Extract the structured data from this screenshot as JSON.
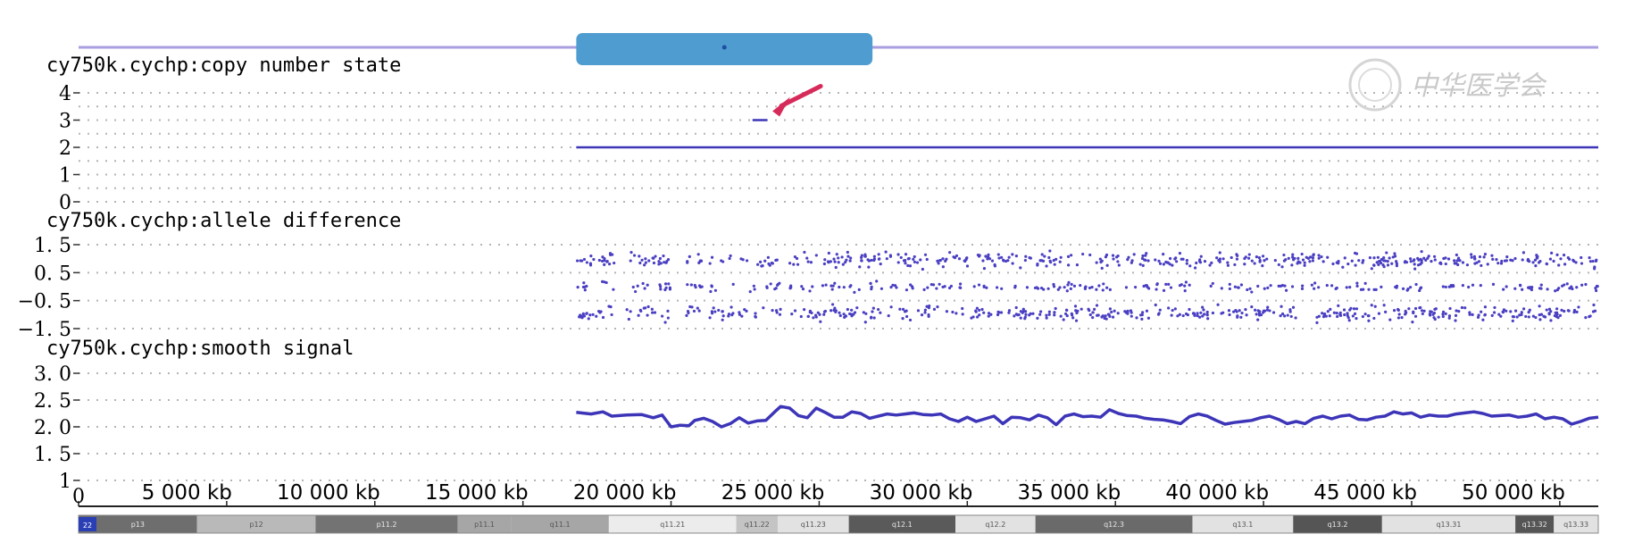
{
  "chart_data": {
    "type": "line",
    "genome_track": {
      "chromosome_label": "22",
      "x_unit": "kb",
      "x_ticks": [
        {
          "value": 0,
          "label": "0"
        },
        {
          "value": 5000,
          "label": "5 000 kb"
        },
        {
          "value": 10000,
          "label": "10 000 kb"
        },
        {
          "value": 15000,
          "label": "15 000 kb"
        },
        {
          "value": 20000,
          "label": "20 000 kb"
        },
        {
          "value": 25000,
          "label": "25 000 kb"
        },
        {
          "value": 30000,
          "label": "30 000 kb"
        },
        {
          "value": 35000,
          "label": "35 000 kb"
        },
        {
          "value": 40000,
          "label": "40 000 kb"
        },
        {
          "value": 45000,
          "label": "45 000 kb"
        },
        {
          "value": 50000,
          "label": "50 000 kb"
        }
      ],
      "xlim": [
        0,
        51300
      ],
      "data_start_kb": 16800,
      "highlight_region_kb": [
        16800,
        26800
      ],
      "highlight_color": "#4f9cd0",
      "ideogram": [
        {
          "name": "p13",
          "start": 0,
          "end": 4000,
          "color": "#6e6e6e"
        },
        {
          "name": "p12",
          "start": 4000,
          "end": 8000,
          "color": "#b9b9b9"
        },
        {
          "name": "p11.2",
          "start": 8000,
          "end": 12800,
          "color": "#737373"
        },
        {
          "name": "p11.1",
          "start": 12800,
          "end": 14600,
          "color": "#a6a6a6"
        },
        {
          "name": "q11.1",
          "start": 14600,
          "end": 17900,
          "color": "#a6a6a6"
        },
        {
          "name": "q11.21",
          "start": 17900,
          "end": 22200,
          "color": "#ececec"
        },
        {
          "name": "q11.22",
          "start": 22200,
          "end": 23600,
          "color": "#c4c4c4"
        },
        {
          "name": "q11.23",
          "start": 23600,
          "end": 26000,
          "color": "#e2e2e2"
        },
        {
          "name": "q12.1",
          "start": 26000,
          "end": 29600,
          "color": "#5a5a5a"
        },
        {
          "name": "q12.2",
          "start": 29600,
          "end": 32300,
          "color": "#e2e2e2"
        },
        {
          "name": "q12.3",
          "start": 32300,
          "end": 37600,
          "color": "#6a6a6a"
        },
        {
          "name": "q13.1",
          "start": 37600,
          "end": 41000,
          "color": "#e2e2e2"
        },
        {
          "name": "q13.2",
          "start": 41000,
          "end": 44000,
          "color": "#555555"
        },
        {
          "name": "q13.31",
          "start": 44000,
          "end": 48500,
          "color": "#e2e2e2"
        },
        {
          "name": "q13.32",
          "start": 48500,
          "end": 49800,
          "color": "#555555"
        },
        {
          "name": "q13.33",
          "start": 49800,
          "end": 51300,
          "color": "#e2e2e2"
        }
      ]
    },
    "panels": [
      {
        "title": "cy750k.cychp:copy number state",
        "ylim": [
          0,
          4
        ],
        "y_ticks": [
          {
            "value": 4,
            "label": "4"
          },
          {
            "value": 3,
            "label": "3"
          },
          {
            "value": 2,
            "label": "2"
          },
          {
            "value": 1,
            "label": "1"
          },
          {
            "value": 0,
            "label": "0"
          }
        ],
        "series": [
          {
            "x_range_kb": [
              16800,
              51300
            ],
            "value": 2
          },
          {
            "x_range_kb": [
              22750,
              23250
            ],
            "value": 3
          }
        ],
        "annotation": {
          "type": "arrow",
          "target_kb": 23000,
          "target_value": 3,
          "color": "#d62a5a"
        }
      },
      {
        "title": "cy750k.cychp:allele difference",
        "ylim": [
          -1.5,
          1.5
        ],
        "y_ticks": [
          {
            "value": 1.5,
            "label": "1. 5"
          },
          {
            "value": 0.5,
            "label": "0. 5"
          },
          {
            "value": -0.5,
            "label": "−0. 5"
          },
          {
            "value": -1.5,
            "label": "−1. 5"
          }
        ],
        "bands": [
          0.95,
          0,
          -0.95
        ],
        "point_color": "#4a3fc2"
      },
      {
        "title": "cy750k.cychp:smooth signal",
        "ylim": [
          1,
          3
        ],
        "y_ticks": [
          {
            "value": 3.0,
            "label": "3. 0"
          },
          {
            "value": 2.5,
            "label": "2. 5"
          },
          {
            "value": 2.0,
            "label": "2. 0"
          },
          {
            "value": 1.5,
            "label": "1. 5"
          },
          {
            "value": 1,
            "label": "1"
          }
        ],
        "series": [
          {
            "x": [
              16800,
              17300,
              17700,
              18000,
              18500,
              19000,
              19400,
              19700,
              20000,
              20300,
              20600,
              20800,
              21100,
              21400,
              21700,
              22000,
              22300,
              22600,
              22900,
              23200,
              23500,
              23700,
              24000,
              24300,
              24600,
              24900,
              25200,
              25500,
              25800,
              26100,
              26400,
              26700,
              27000,
              27300,
              27600,
              27900,
              28200,
              28500,
              28800,
              29100,
              29400,
              29700,
              30000,
              30300,
              30600,
              30900,
              31200,
              31500,
              31800,
              32100,
              32400,
              32700,
              33000,
              33300,
              33600,
              33900,
              34200,
              34500,
              34800,
              35100,
              35400,
              35700,
              36000,
              36300,
              36600,
              36900,
              37200,
              37500,
              37800,
              38100,
              38400,
              38700,
              39000,
              39300,
              39600,
              39900,
              40200,
              40500,
              40800,
              41100,
              41400,
              41700,
              42000,
              42300,
              42600,
              42900,
              43200,
              43500,
              43800,
              44100,
              44400,
              44700,
              45000,
              45300,
              45600,
              45900,
              46200,
              46500,
              46800,
              47100,
              47400,
              47700,
              48000,
              48300,
              48600,
              48900,
              49200,
              49500,
              49800,
              50100,
              50400,
              50700,
              51000,
              51300
            ],
            "y": [
              2.27,
              2.24,
              2.28,
              2.2,
              2.22,
              2.23,
              2.17,
              2.22,
              2.0,
              2.03,
              2.02,
              2.12,
              2.16,
              2.1,
              2.0,
              2.06,
              2.17,
              2.07,
              2.11,
              2.12,
              2.28,
              2.38,
              2.35,
              2.21,
              2.17,
              2.35,
              2.27,
              2.18,
              2.18,
              2.28,
              2.25,
              2.16,
              2.2,
              2.24,
              2.22,
              2.24,
              2.26,
              2.23,
              2.22,
              2.24,
              2.15,
              2.1,
              2.18,
              2.1,
              2.15,
              2.2,
              2.06,
              2.18,
              2.17,
              2.13,
              2.22,
              2.17,
              2.04,
              2.2,
              2.24,
              2.19,
              2.2,
              2.18,
              2.32,
              2.25,
              2.21,
              2.2,
              2.16,
              2.14,
              2.13,
              2.1,
              2.06,
              2.19,
              2.24,
              2.2,
              2.12,
              2.05,
              2.08,
              2.1,
              2.12,
              2.17,
              2.2,
              2.14,
              2.06,
              2.1,
              2.06,
              2.16,
              2.2,
              2.15,
              2.2,
              2.22,
              2.14,
              2.13,
              2.18,
              2.2,
              2.28,
              2.24,
              2.26,
              2.18,
              2.22,
              2.2,
              2.2,
              2.24,
              2.26,
              2.28,
              2.25,
              2.2,
              2.21,
              2.22,
              2.18,
              2.2,
              2.24,
              2.15,
              2.18,
              2.15,
              2.05,
              2.1,
              2.16,
              2.18
            ]
          }
        ],
        "line_color": "#3d35b8"
      }
    ],
    "watermark": "中华医学会"
  }
}
